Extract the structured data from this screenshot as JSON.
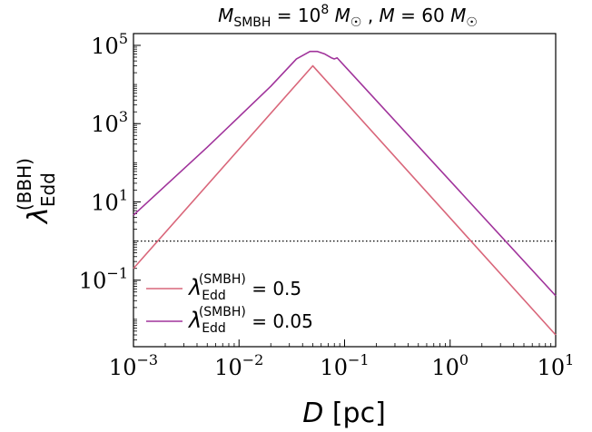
{
  "chart_data": {
    "type": "line",
    "title": {
      "m1_symbol": "M",
      "m1_sub": "SMBH",
      "m1_eq": " = 10",
      "m1_exp": "8",
      "m1_unit": "M",
      "m1_unit_sub": "☉",
      "sep": " , ",
      "m2_symbol": "M",
      "m2_eq": " = 60",
      "m2_unit": "M",
      "m2_unit_sub": "☉"
    },
    "xlabel": {
      "symbol": "D",
      "unit": " [pc]"
    },
    "ylabel": {
      "symbol": "λ",
      "sub": "Edd",
      "sup": "(BBH)"
    },
    "x_scale": "log",
    "y_scale": "log",
    "xlim": [
      0.001,
      10
    ],
    "ylim": [
      0.002,
      200000
    ],
    "x_ticks": [
      {
        "value": 0.001,
        "base": "10",
        "exp": "−3"
      },
      {
        "value": 0.01,
        "base": "10",
        "exp": "−2"
      },
      {
        "value": 0.1,
        "base": "10",
        "exp": "−1"
      },
      {
        "value": 1,
        "base": "10",
        "exp": "0"
      },
      {
        "value": 10,
        "base": "10",
        "exp": "1"
      }
    ],
    "y_ticks": [
      {
        "value": 0.1,
        "base": "10",
        "exp": "−1"
      },
      {
        "value": 10,
        "base": "10",
        "exp": "1"
      },
      {
        "value": 1000,
        "base": "10",
        "exp": "3"
      },
      {
        "value": 100000,
        "base": "10",
        "exp": "5"
      }
    ],
    "reference_line": {
      "y": 1,
      "style": "dotted",
      "color": "#000000"
    },
    "legend_position": "lower-left",
    "series": [
      {
        "name": {
          "symbol": "λ",
          "sub": "Edd",
          "sup": "(SMBH)",
          "eq": " = 0.5"
        },
        "color": "#d9667a",
        "points": [
          [
            0.001,
            0.2
          ],
          [
            0.05,
            30000
          ],
          [
            10,
            0.004
          ]
        ]
      },
      {
        "name": {
          "symbol": "λ",
          "sub": "Edd",
          "sup": "(SMBH)",
          "eq": " = 0.05"
        },
        "color": "#a0339b",
        "points": [
          [
            0.001,
            4.6
          ],
          [
            0.005,
            250
          ],
          [
            0.01,
            1500
          ],
          [
            0.02,
            9000
          ],
          [
            0.035,
            45000
          ],
          [
            0.047,
            70000
          ],
          [
            0.055,
            70000
          ],
          [
            0.065,
            60000
          ],
          [
            0.075,
            48000
          ],
          [
            0.08,
            45000
          ],
          [
            0.085,
            48000
          ],
          [
            10,
            0.04
          ]
        ]
      }
    ]
  }
}
